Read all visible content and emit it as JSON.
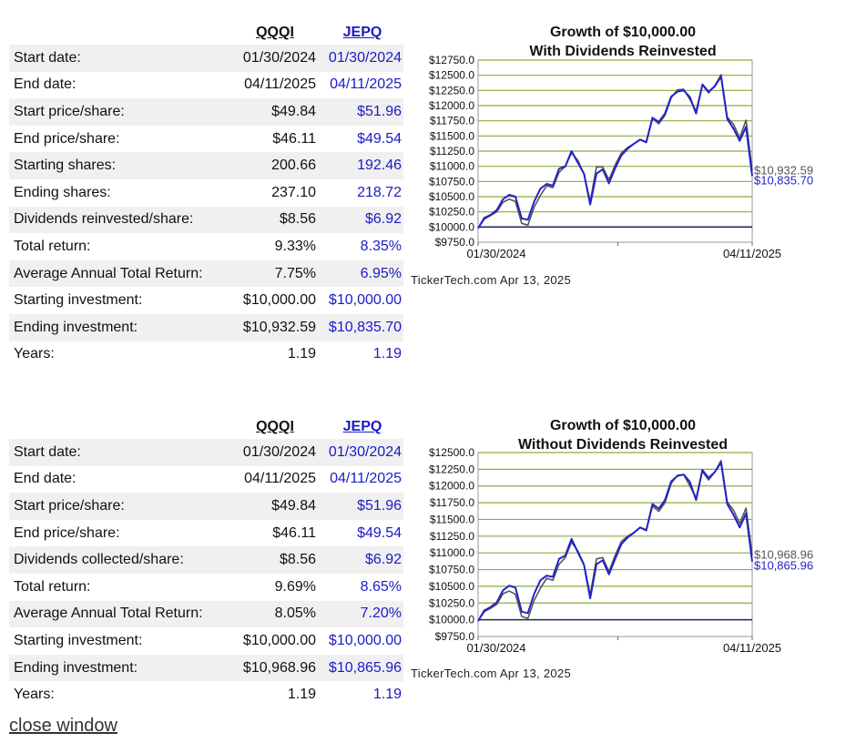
{
  "headers": {
    "qqqi": "QQQI",
    "jepq": "JEPQ"
  },
  "table1": [
    {
      "label": "Start date:",
      "qqqi": "01/30/2024",
      "jepq": "01/30/2024"
    },
    {
      "label": "End date:",
      "qqqi": "04/11/2025",
      "jepq": "04/11/2025"
    },
    {
      "label": "Start price/share:",
      "qqqi": "$49.84",
      "jepq": "$51.96"
    },
    {
      "label": "End price/share:",
      "qqqi": "$46.11",
      "jepq": "$49.54"
    },
    {
      "label": "Starting shares:",
      "qqqi": "200.66",
      "jepq": "192.46"
    },
    {
      "label": "Ending shares:",
      "qqqi": "237.10",
      "jepq": "218.72"
    },
    {
      "label": "Dividends reinvested/share:",
      "qqqi": "$8.56",
      "jepq": "$6.92"
    },
    {
      "label": "Total return:",
      "qqqi": "9.33%",
      "jepq": "8.35%"
    },
    {
      "label": "Average Annual Total Return:",
      "qqqi": "7.75%",
      "jepq": "6.95%"
    },
    {
      "label": "Starting investment:",
      "qqqi": "$10,000.00",
      "jepq": "$10,000.00"
    },
    {
      "label": "Ending investment:",
      "qqqi": "$10,932.59",
      "jepq": "$10,835.70"
    },
    {
      "label": "Years:",
      "qqqi": "1.19",
      "jepq": "1.19"
    }
  ],
  "table2": [
    {
      "label": "Start date:",
      "qqqi": "01/30/2024",
      "jepq": "01/30/2024"
    },
    {
      "label": "End date:",
      "qqqi": "04/11/2025",
      "jepq": "04/11/2025"
    },
    {
      "label": "Start price/share:",
      "qqqi": "$49.84",
      "jepq": "$51.96"
    },
    {
      "label": "End price/share:",
      "qqqi": "$46.11",
      "jepq": "$49.54"
    },
    {
      "label": "Dividends collected/share:",
      "qqqi": "$8.56",
      "jepq": "$6.92"
    },
    {
      "label": "Total return:",
      "qqqi": "9.69%",
      "jepq": "8.65%"
    },
    {
      "label": "Average Annual Total Return:",
      "qqqi": "8.05%",
      "jepq": "7.20%"
    },
    {
      "label": "Starting investment:",
      "qqqi": "$10,000.00",
      "jepq": "$10,000.00"
    },
    {
      "label": "Ending investment:",
      "qqqi": "$10,968.96",
      "jepq": "$10,865.96"
    },
    {
      "label": "Years:",
      "qqqi": "1.19",
      "jepq": "1.19"
    }
  ],
  "colors": {
    "qqqi": "#555555",
    "jepq": "#2222cc",
    "grid": "#8aad3c",
    "baseline": "#1f2a6e",
    "link_blue": "#1a1ac8"
  },
  "credit": "TickerTech.com  Apr 13, 2025",
  "close_link": "close window",
  "chart_data": [
    {
      "type": "line",
      "title_line1": "Growth of $10,000.00",
      "title_line2": "With Dividends Reinvested",
      "x_labels": [
        "01/30/2024",
        "04/11/2025"
      ],
      "y_ticks": [
        "$9750.0",
        "$10000.0",
        "$10250.0",
        "$10500.0",
        "$10750.0",
        "$11000.0",
        "$11250.0",
        "$11500.0",
        "$11750.0",
        "$12000.0",
        "$12250.0",
        "$12500.0",
        "$12750.0"
      ],
      "ylim": [
        9750,
        12750
      ],
      "grid": true,
      "end_labels": [
        "$10,932.59",
        "$10,835.70"
      ],
      "series": [
        {
          "name": "QQQI",
          "values": [
            9980,
            10130,
            10190,
            10250,
            10410,
            10460,
            10420,
            10060,
            10030,
            10330,
            10520,
            10680,
            10650,
            10900,
            11000,
            11220,
            11100,
            10870,
            10420,
            10990,
            10990,
            10780,
            11020,
            11220,
            11310,
            11370,
            11440,
            11390,
            11790,
            11700,
            11840,
            12130,
            12260,
            12270,
            12100,
            11910,
            12340,
            12210,
            12330,
            12510,
            11810,
            11690,
            11470,
            11760,
            10930
          ]
        },
        {
          "name": "JEPQ",
          "values": [
            9980,
            10150,
            10200,
            10280,
            10460,
            10530,
            10500,
            10140,
            10120,
            10420,
            10630,
            10710,
            10680,
            10960,
            11000,
            11250,
            11060,
            10880,
            10370,
            10880,
            10950,
            10720,
            10970,
            11180,
            11290,
            11370,
            11440,
            11400,
            11800,
            11730,
            11870,
            12150,
            12230,
            12250,
            12140,
            11870,
            12350,
            12230,
            12320,
            12480,
            11780,
            11620,
            11420,
            11650,
            10840
          ]
        }
      ]
    },
    {
      "type": "line",
      "title_line1": "Growth of $10,000.00",
      "title_line2": "Without Dividends Reinvested",
      "x_labels": [
        "01/30/2024",
        "04/11/2025"
      ],
      "y_ticks": [
        "$9750.0",
        "$10000.0",
        "$10250.0",
        "$10500.0",
        "$10750.0",
        "$11000.0",
        "$11250.0",
        "$11500.0",
        "$11750.0",
        "$12000.0",
        "$12250.0",
        "$12500.0"
      ],
      "ylim": [
        9750,
        12500
      ],
      "grid": true,
      "end_labels": [
        "$10,968.96",
        "$10,865.96"
      ],
      "series": [
        {
          "name": "QQQI",
          "values": [
            9980,
            10120,
            10170,
            10230,
            10390,
            10430,
            10380,
            10050,
            10020,
            10290,
            10470,
            10620,
            10590,
            10830,
            10930,
            11160,
            11030,
            10830,
            10370,
            10910,
            10930,
            10720,
            10960,
            11170,
            11250,
            11300,
            11380,
            11330,
            11700,
            11620,
            11750,
            12040,
            12160,
            12170,
            12000,
            11820,
            12220,
            12090,
            12210,
            12380,
            11760,
            11640,
            11440,
            11670,
            10970
          ]
        },
        {
          "name": "JEPQ",
          "values": [
            9980,
            10140,
            10190,
            10260,
            10440,
            10510,
            10480,
            10120,
            10100,
            10390,
            10590,
            10660,
            10640,
            10910,
            10960,
            11210,
            11010,
            10820,
            10320,
            10830,
            10890,
            10680,
            10910,
            11130,
            11230,
            11300,
            11380,
            11340,
            11730,
            11660,
            11790,
            12070,
            12150,
            12170,
            12060,
            11790,
            12240,
            12120,
            12210,
            12350,
            11730,
            11570,
            11380,
            11590,
            10870
          ]
        }
      ]
    }
  ]
}
